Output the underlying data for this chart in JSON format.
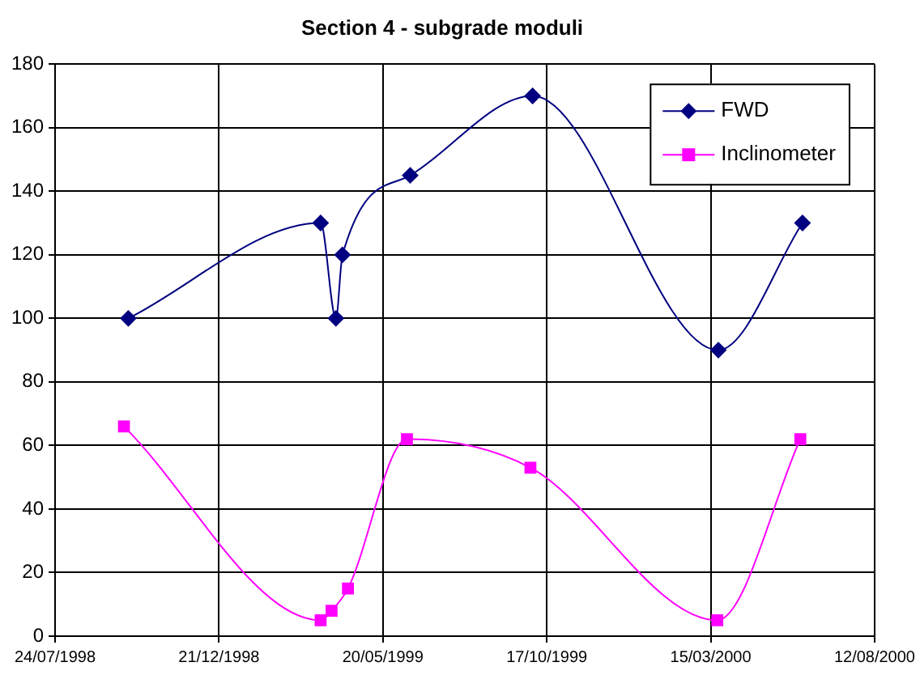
{
  "chart_data": {
    "type": "line",
    "title": "Section 4 - subgrade moduli",
    "series": [
      {
        "name": "FWD",
        "color": "#000080",
        "marker": "diamond",
        "x": [
          "1998-09-29",
          "1999-03-24",
          "1999-04-07",
          "1999-04-13",
          "1999-06-14",
          "1999-10-04",
          "2000-03-22",
          "2000-06-07"
        ],
        "values": [
          100,
          130,
          100,
          120,
          145,
          170,
          90,
          130
        ]
      },
      {
        "name": "Inclinometer",
        "color": "#ff00ff",
        "marker": "square",
        "x": [
          "1998-09-25",
          "1999-03-24",
          "1999-04-03",
          "1999-04-18",
          "1999-06-11",
          "1999-10-02",
          "2000-03-21",
          "2000-06-05"
        ],
        "values": [
          66,
          5,
          8,
          15,
          62,
          53,
          5,
          62
        ]
      }
    ],
    "xlim": [
      "1998-07-24",
      "2000-08-12"
    ],
    "xticks": [
      {
        "value": "1998-07-24",
        "label": "24/07/1998"
      },
      {
        "value": "1998-12-21",
        "label": "21/12/1998"
      },
      {
        "value": "1999-05-20",
        "label": "20/05/1999"
      },
      {
        "value": "1999-10-17",
        "label": "17/10/1999"
      },
      {
        "value": "2000-03-15",
        "label": "15/03/2000"
      },
      {
        "value": "2000-08-12",
        "label": "12/08/2000"
      }
    ],
    "ylim": [
      0,
      180
    ],
    "yticks": [
      0,
      20,
      40,
      60,
      80,
      100,
      120,
      140,
      160,
      180
    ],
    "grid": true,
    "legend": "top right"
  }
}
